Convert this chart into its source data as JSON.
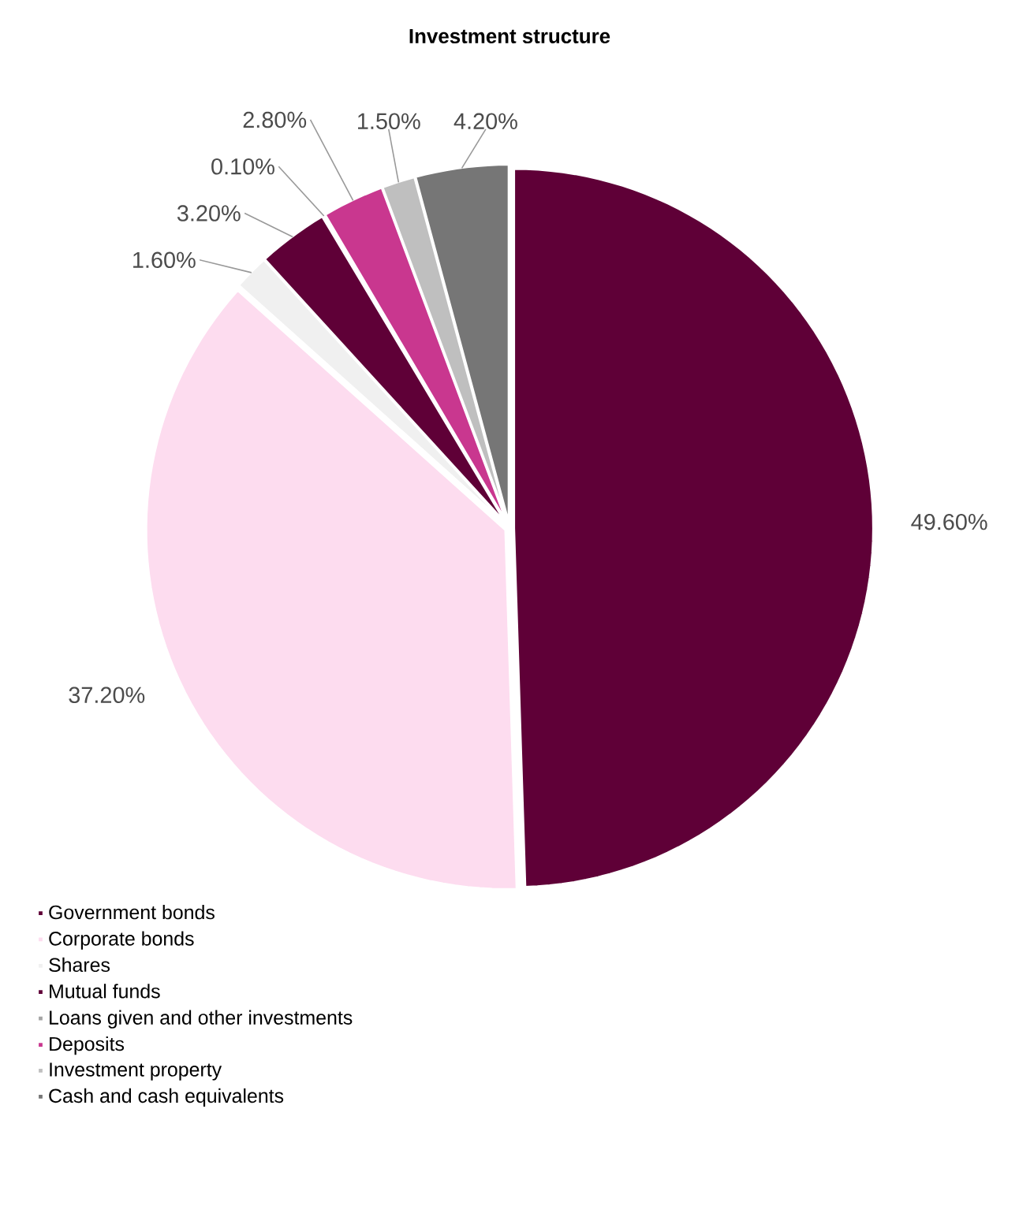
{
  "chart_data": {
    "type": "pie",
    "title": "Investment structure",
    "categories": [
      "Government bonds",
      "Corporate bonds",
      "Shares",
      "Mutual funds",
      "Loans given  and other investments",
      "Deposits",
      "Investment property",
      "Cash and cash equivalents"
    ],
    "values": [
      49.6,
      37.2,
      1.6,
      3.2,
      0.1,
      2.8,
      1.5,
      4.2
    ],
    "value_labels": [
      "49.60%",
      "37.20%",
      "1.60%",
      "3.20%",
      "0.10%",
      "2.80%",
      "1.50%",
      "4.20%"
    ],
    "colors": [
      "#5f0037",
      "#fddcef",
      "#f0f0f0",
      "#5f0037",
      "#a5a5a5",
      "#c9378f",
      "#bfbfbf",
      "#767676"
    ],
    "legend": "bottom"
  }
}
